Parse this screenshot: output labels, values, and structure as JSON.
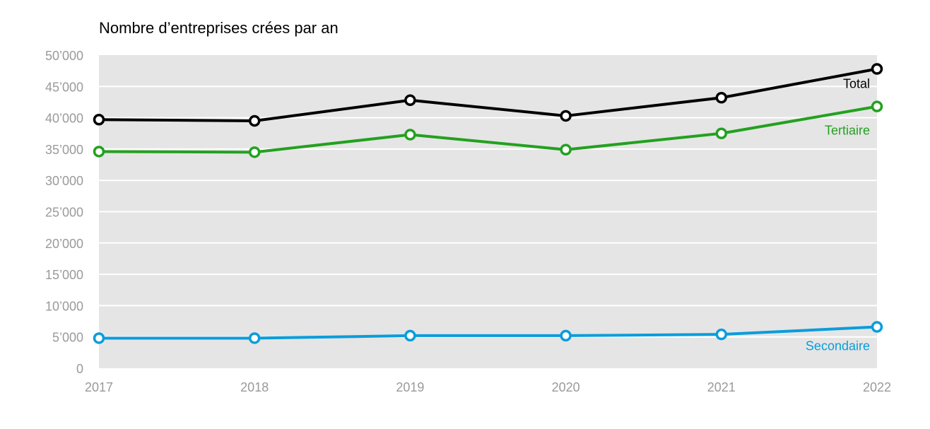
{
  "chart_data": {
    "type": "line",
    "title": "Nombre d’entreprises crées par an",
    "xlabel": "",
    "ylabel": "",
    "x": [
      "2017",
      "2018",
      "2019",
      "2020",
      "2021",
      "2022"
    ],
    "y_ticks": [
      "0",
      "5’000",
      "10’000",
      "15’000",
      "20’000",
      "25’000",
      "30’000",
      "35’000",
      "40’000",
      "45’000",
      "50’000"
    ],
    "ylim": [
      0,
      50000
    ],
    "grid": true,
    "plot_background": "#e5e5e5",
    "series": [
      {
        "name": "Total",
        "color": "#000000",
        "values": [
          39700,
          39500,
          42800,
          40300,
          43200,
          47800
        ]
      },
      {
        "name": "Tertiaire",
        "color": "#23a11f",
        "values": [
          34600,
          34500,
          37300,
          34900,
          37500,
          41800
        ]
      },
      {
        "name": "Secondaire",
        "color": "#0a9ddb",
        "values": [
          4800,
          4800,
          5200,
          5200,
          5400,
          6600
        ]
      }
    ]
  }
}
